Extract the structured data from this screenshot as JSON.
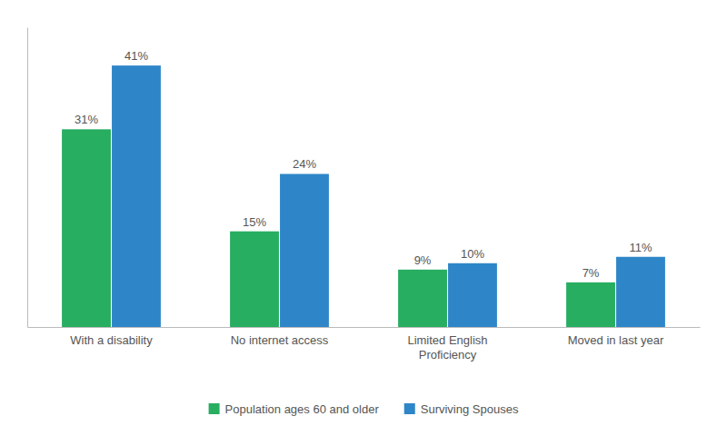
{
  "chart_data": {
    "type": "bar",
    "categories": [
      "With a disability",
      "No internet access",
      "Limited English\nProficiency",
      "Moved in last year"
    ],
    "series": [
      {
        "name": "Population ages 60 and older",
        "color": "#27ae60",
        "values": [
          31,
          15,
          9,
          7
        ],
        "value_labels": [
          "31%",
          "15%",
          "9%",
          "7%"
        ]
      },
      {
        "name": "Surviving Spouses",
        "color": "#2e86c8",
        "values": [
          41,
          24,
          10,
          11
        ],
        "value_labels": [
          "41%",
          "24%",
          "10%",
          "11%"
        ]
      }
    ],
    "ylim": [
      0,
      47
    ],
    "data_labels": true,
    "tick_labels": "x",
    "legend": "bottom"
  }
}
